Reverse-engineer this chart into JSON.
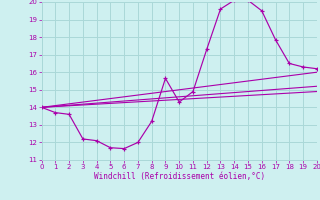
{
  "xlabel": "Windchill (Refroidissement éolien,°C)",
  "xlim": [
    0,
    20
  ],
  "ylim": [
    11,
    20
  ],
  "xticks": [
    0,
    1,
    2,
    3,
    4,
    5,
    6,
    7,
    8,
    9,
    10,
    11,
    12,
    13,
    14,
    15,
    16,
    17,
    18,
    19,
    20
  ],
  "yticks": [
    11,
    12,
    13,
    14,
    15,
    16,
    17,
    18,
    19,
    20
  ],
  "bg_color": "#cef0f0",
  "grid_color": "#aad8d8",
  "line_color": "#aa00aa",
  "main_x": [
    0,
    1,
    2,
    3,
    4,
    5,
    6,
    7,
    8,
    9,
    10,
    11,
    12,
    13,
    14,
    15,
    16,
    17,
    18,
    19,
    20
  ],
  "main_y": [
    14.0,
    13.7,
    13.6,
    12.2,
    12.1,
    11.7,
    11.65,
    12.0,
    13.2,
    15.65,
    14.3,
    14.9,
    17.3,
    19.6,
    20.1,
    20.1,
    19.5,
    17.85,
    16.5,
    16.3,
    16.2
  ],
  "line1_x": [
    0,
    20
  ],
  "line1_y": [
    14.0,
    16.0
  ],
  "line2_x": [
    0,
    20
  ],
  "line2_y": [
    14.0,
    15.2
  ],
  "line3_x": [
    0,
    20
  ],
  "line3_y": [
    14.0,
    14.9
  ]
}
